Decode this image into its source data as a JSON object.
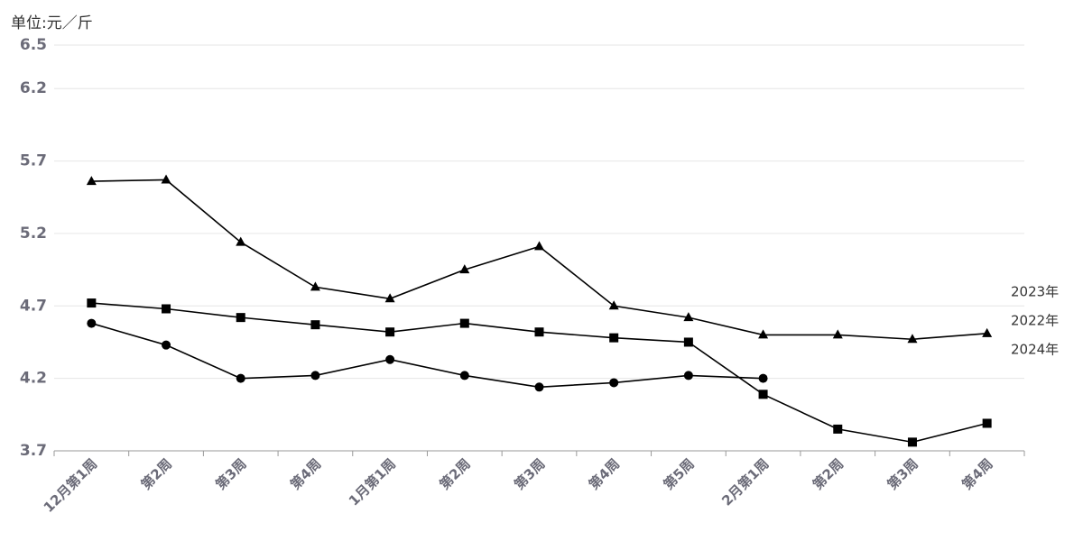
{
  "chart_data": {
    "type": "line",
    "y_unit_label": "单位:元／斤",
    "categories": [
      "12月第1周",
      "第2周",
      "第3周",
      "第4周",
      "1月第1周",
      "第2周",
      "第3周",
      "第4周",
      "第5周",
      "2月第1周",
      "第2周",
      "第3周",
      "第4周"
    ],
    "series": [
      {
        "name": "2023年",
        "color": "#000000",
        "marker": "triangle",
        "values": [
          5.56,
          5.57,
          5.14,
          4.83,
          4.75,
          4.95,
          5.11,
          4.7,
          4.62,
          4.5,
          4.5,
          4.47,
          4.51
        ]
      },
      {
        "name": "2022年",
        "color": "#000000",
        "marker": "square",
        "values": [
          4.72,
          4.68,
          4.62,
          4.57,
          4.52,
          4.58,
          4.52,
          4.48,
          4.45,
          4.09,
          3.85,
          3.76,
          3.89
        ]
      },
      {
        "name": "2024年",
        "color": "#000000",
        "marker": "circle",
        "values": [
          4.58,
          4.43,
          4.2,
          4.22,
          4.33,
          4.22,
          4.14,
          4.17,
          4.22,
          4.2,
          null,
          null,
          null
        ]
      }
    ],
    "ylim": [
      3.7,
      6.5
    ],
    "yticks": [
      3.7,
      4.2,
      4.7,
      5.2,
      5.7,
      6.2,
      6.5
    ],
    "grid": true
  }
}
